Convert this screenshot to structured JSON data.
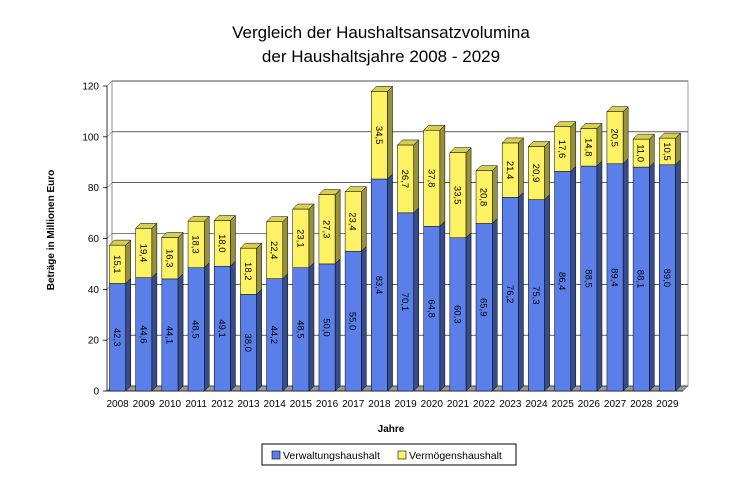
{
  "chart_data": {
    "type": "bar",
    "stacked": true,
    "title_line1": "Vergleich der Haushaltsansatzvolumina",
    "title_line2": "der Haushaltsjahre 2008 - 2029",
    "xlabel": "Jahre",
    "ylabel": "Beträge in Millionen Euro",
    "ylim": [
      0,
      120
    ],
    "yticks": [
      0,
      20,
      40,
      60,
      80,
      100,
      120
    ],
    "grid": true,
    "legend_position": "bottom",
    "categories": [
      "2008",
      "2009",
      "2010",
      "2011",
      "2012",
      "2013",
      "2014",
      "2015",
      "2016",
      "2017",
      "2018",
      "2019",
      "2020",
      "2021",
      "2022",
      "2023",
      "2024",
      "2025",
      "2026",
      "2027",
      "2028",
      "2029"
    ],
    "series": [
      {
        "name": "Verwaltungshaushalt",
        "color": "#5b7fe8",
        "values": [
          42.3,
          44.6,
          44.1,
          48.5,
          49.1,
          38.0,
          44.2,
          48.5,
          50.0,
          55.0,
          83.4,
          70.1,
          64.8,
          60.3,
          65.9,
          76.2,
          75.3,
          86.4,
          88.5,
          89.4,
          88.1,
          89.0
        ],
        "labels": [
          "42,3",
          "44,6",
          "44,1",
          "48,5",
          "49,1",
          "38,0",
          "44,2",
          "48,5",
          "50,0",
          "55,0",
          "83,4",
          "70,1",
          "64,8",
          "60,3",
          "65,9",
          "76,2",
          "75,3",
          "86,4",
          "88,5",
          "89,4",
          "88,1",
          "89,0"
        ]
      },
      {
        "name": "Vermögenshaushalt",
        "color": "#fdf263",
        "values": [
          15.1,
          19.4,
          16.3,
          18.3,
          18.0,
          18.2,
          22.4,
          23.1,
          27.3,
          23.4,
          34.5,
          26.7,
          37.8,
          33.5,
          20.8,
          21.4,
          20.9,
          17.6,
          14.8,
          20.5,
          11.0,
          10.5
        ],
        "labels": [
          "15,1",
          "19,4",
          "16,3",
          "18,3",
          "18,0",
          "18,2",
          "22,4",
          "23,1",
          "27,3",
          "23,4",
          "34,5",
          "26,7",
          "37,8",
          "33,5",
          "20,8",
          "21,4",
          "20,9",
          "17,6",
          "14,8",
          "20,5",
          "11,0",
          "10,5"
        ]
      }
    ]
  }
}
